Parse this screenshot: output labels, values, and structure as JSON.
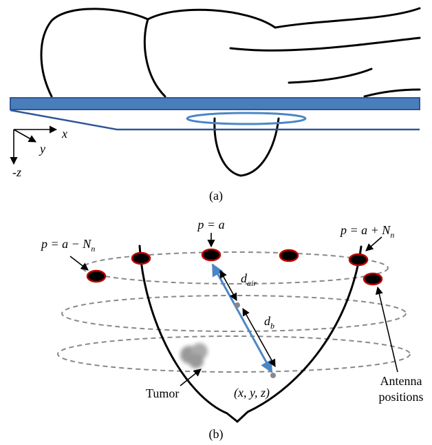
{
  "axes": {
    "x": "x",
    "y": "y",
    "z": "-z"
  },
  "caption_a": "(a)",
  "caption_b": "(b)",
  "labels": {
    "p_center": "p = a",
    "p_minus": {
      "main": "p = a − N",
      "sub": "n"
    },
    "p_plus": {
      "main": "p = a + N",
      "sub": "n"
    },
    "d_air": {
      "main": "d",
      "sub": "air"
    },
    "d_b": {
      "main": "d",
      "sub": "b"
    },
    "point": "(x, y, z)",
    "tumor": "Tumor",
    "antenna": [
      "Antenna",
      "positions"
    ]
  }
}
